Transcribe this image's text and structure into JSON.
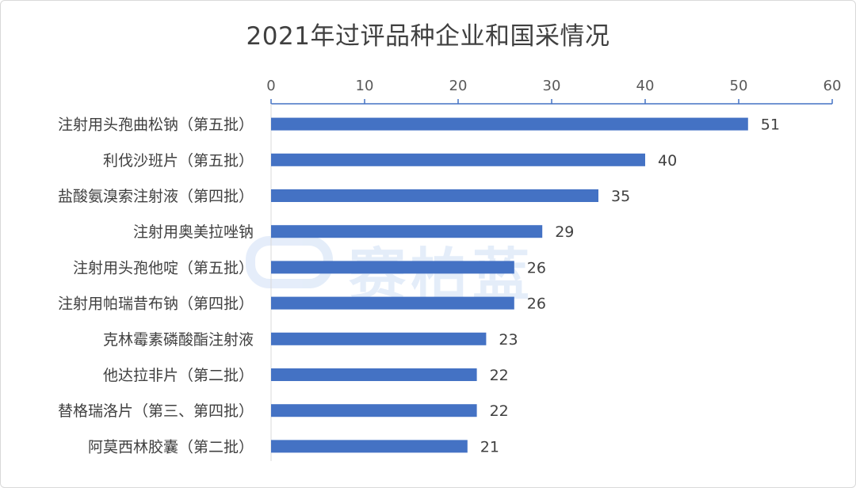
{
  "chart_data": {
    "type": "bar",
    "orientation": "horizontal",
    "title": "2021年过评品种企业和国采情况",
    "categories": [
      "注射用头孢曲松钠（第五批）",
      "利伐沙班片（第五批）",
      "盐酸氨溴索注射液（第四批）",
      "注射用奥美拉唑钠",
      "注射用头孢他啶（第五批）",
      "注射用帕瑞昔布钠（第四批）",
      "克林霉素磷酸酯注射液",
      "他达拉非片（第二批）",
      "替格瑞洛片（第三、第四批）",
      "阿莫西林胶囊（第二批）"
    ],
    "values": [
      51,
      40,
      35,
      29,
      26,
      26,
      23,
      22,
      22,
      21
    ],
    "xlim": [
      0,
      60
    ],
    "xticks": [
      0,
      10,
      20,
      30,
      40,
      50,
      60
    ],
    "axis_position": "top",
    "grid": false,
    "legend": "none",
    "bar_color": "#4472c4"
  },
  "watermark": "赛柏蓝"
}
